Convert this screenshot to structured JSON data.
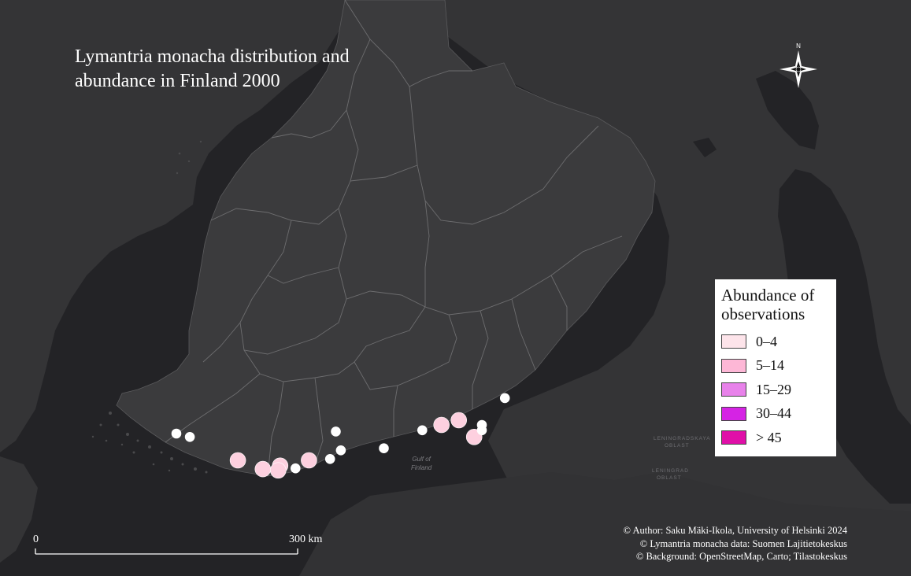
{
  "title": {
    "line1": "Lymantria monacha distribution and",
    "line2": "abundance in Finland 2000"
  },
  "legend": {
    "title_line1": "Abundance of",
    "title_line2": "observations",
    "classes": [
      {
        "label": "0–4",
        "color": "#fde4ea"
      },
      {
        "label": "5–14",
        "color": "#fdb7d6"
      },
      {
        "label": "15–29",
        "color": "#e882ea"
      },
      {
        "label": "30–44",
        "color": "#d523e4"
      },
      {
        "label": "> 45",
        "color": "#e00fa8"
      }
    ]
  },
  "scale_bar": {
    "start_label": "0",
    "end_label": "300 km"
  },
  "credits": {
    "author": "© Author: Saku Mäki-Ikola, University of Helsinki 2024",
    "data": "© Lymantria monacha data: Suomen Lajitietokeskus",
    "background": "© Background: OpenStreetMap, Carto; Tilastokeskus"
  },
  "basemap_labels": {
    "gulf_of_finland_line1": "Gulf of",
    "gulf_of_finland_line2": "Finland",
    "leningrad_line1": "LENINGRADSKAYA",
    "leningrad_line2": "OBLAST",
    "leningrad_south_line1": "LENINGRAD",
    "leningrad_south_line2": "OBLAST"
  },
  "north_arrow_label": "N",
  "observations": [
    {
      "lon": 21.5,
      "lat": 60.35,
      "class": 0
    },
    {
      "lon": 21.85,
      "lat": 60.3,
      "class": 0
    },
    {
      "lon": 23.1,
      "lat": 59.95,
      "class": 1
    },
    {
      "lon": 23.75,
      "lat": 59.82,
      "class": 1
    },
    {
      "lon": 24.2,
      "lat": 59.87,
      "class": 1
    },
    {
      "lon": 24.15,
      "lat": 59.8,
      "class": 1
    },
    {
      "lon": 24.6,
      "lat": 59.83,
      "class": 0
    },
    {
      "lon": 24.95,
      "lat": 59.95,
      "class": 1
    },
    {
      "lon": 25.5,
      "lat": 59.97,
      "class": 0
    },
    {
      "lon": 25.78,
      "lat": 60.1,
      "class": 0
    },
    {
      "lon": 25.65,
      "lat": 60.38,
      "class": 0
    },
    {
      "lon": 26.9,
      "lat": 60.13,
      "class": 0
    },
    {
      "lon": 27.9,
      "lat": 60.4,
      "class": 0
    },
    {
      "lon": 28.4,
      "lat": 60.48,
      "class": 1
    },
    {
      "lon": 28.85,
      "lat": 60.55,
      "class": 1
    },
    {
      "lon": 29.25,
      "lat": 60.3,
      "class": 1
    },
    {
      "lon": 29.45,
      "lat": 60.4,
      "class": 0
    },
    {
      "lon": 29.45,
      "lat": 60.48,
      "class": 0
    },
    {
      "lon": 30.05,
      "lat": 60.88,
      "class": 0
    }
  ]
}
